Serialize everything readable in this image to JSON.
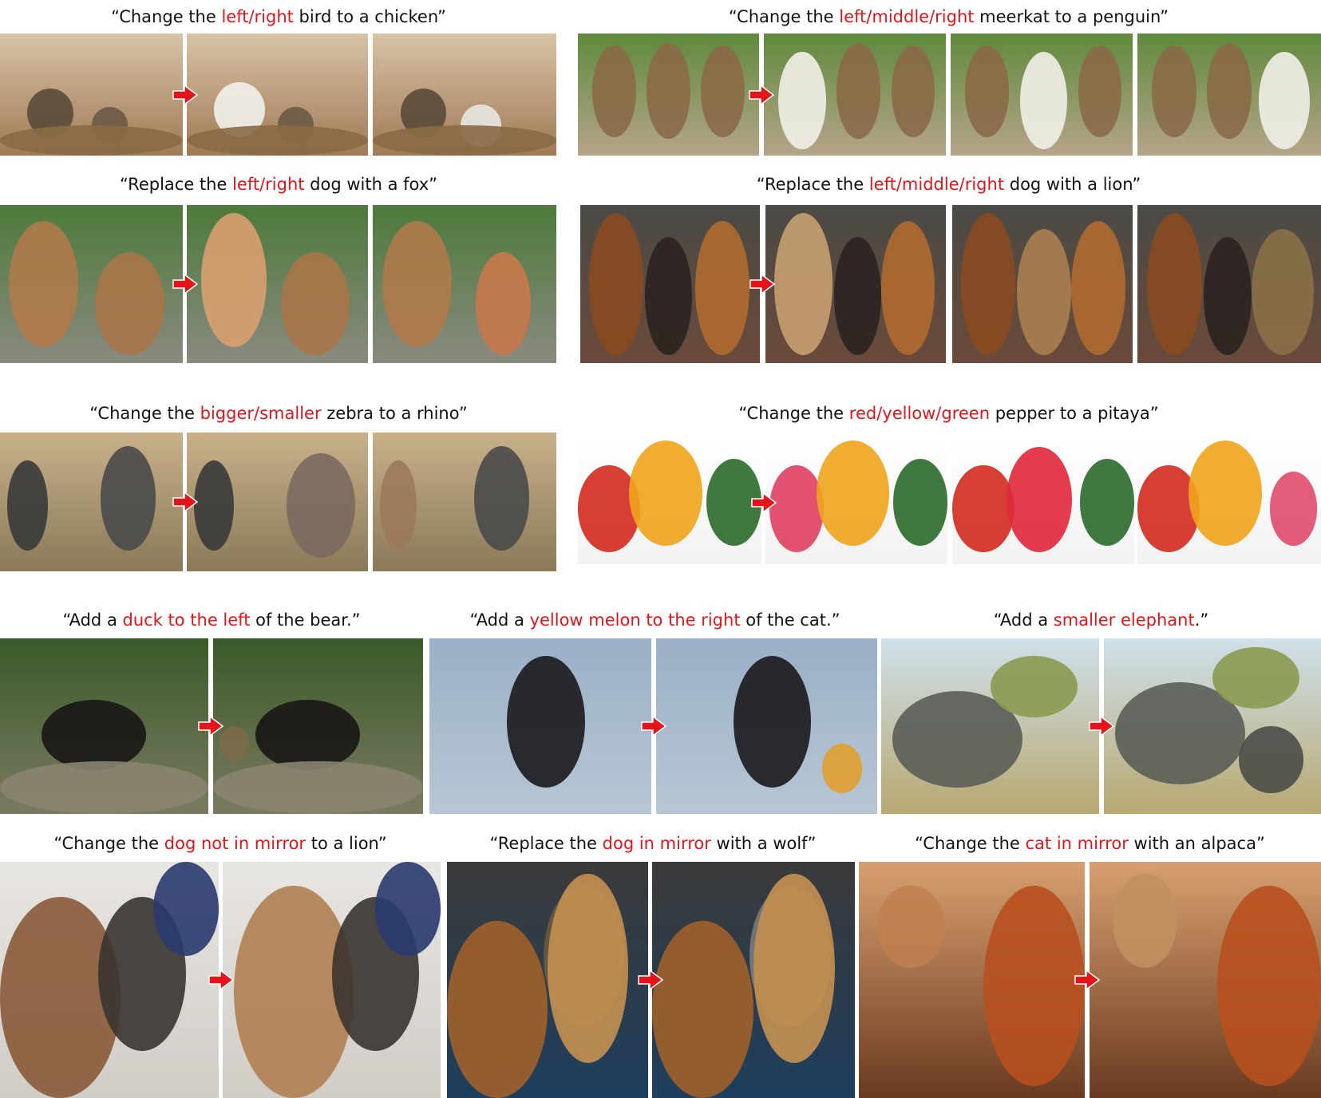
{
  "colors": {
    "highlight": "#e4141b",
    "text": "#111111",
    "arrow": "#e4141b"
  },
  "figure": {
    "rows": [
      {
        "groups": [
          {
            "caption": {
              "pre": "“Change the ",
              "hl": "left/right",
              "post": " bird to a chicken”"
            },
            "panels": [
              {
                "subject": "two-hornbills-input"
              },
              {
                "subject": "left-bird-to-chicken"
              },
              {
                "subject": "right-bird-to-chicken"
              }
            ]
          },
          {
            "caption": {
              "pre": "“Change the ",
              "hl": "left/middle/right",
              "post": " meerkat to a penguin”"
            },
            "panels": [
              {
                "subject": "three-meerkats-input"
              },
              {
                "subject": "left-meerkat-to-penguin"
              },
              {
                "subject": "middle-meerkat-to-penguin"
              },
              {
                "subject": "right-meerkat-to-penguin"
              }
            ]
          }
        ]
      },
      {
        "groups": [
          {
            "caption": {
              "pre": "“Replace the ",
              "hl": "left/right",
              "post": " dog with a fox”"
            },
            "panels": [
              {
                "subject": "two-puppies-input"
              },
              {
                "subject": "left-dog-to-fox"
              },
              {
                "subject": "right-dog-to-fox"
              }
            ]
          },
          {
            "caption": {
              "pre": "“Replace the ",
              "hl": "left/middle/right",
              "post": " dog with a lion”"
            },
            "panels": [
              {
                "subject": "three-dogs-input"
              },
              {
                "subject": "left-dog-to-lion"
              },
              {
                "subject": "middle-dog-to-lion"
              },
              {
                "subject": "right-dog-to-lion"
              }
            ]
          }
        ]
      },
      {
        "groups": [
          {
            "caption": {
              "pre": "“Change the ",
              "hl": "bigger/smaller",
              "post": " zebra to a rhino”"
            },
            "panels": [
              {
                "subject": "two-zebras-input"
              },
              {
                "subject": "bigger-zebra-to-rhino"
              },
              {
                "subject": "smaller-zebra-to-rhino"
              }
            ]
          },
          {
            "caption": {
              "pre": "“Change the ",
              "hl": "red/yellow/green",
              "post": " pepper to a pitaya”"
            },
            "panels": [
              {
                "subject": "three-peppers-input"
              },
              {
                "subject": "red-pepper-to-pitaya"
              },
              {
                "subject": "yellow-pepper-to-pitaya"
              },
              {
                "subject": "green-pepper-to-pitaya"
              }
            ]
          }
        ]
      },
      {
        "groups": [
          {
            "caption": {
              "pre": "“Add a ",
              "hl": "duck to the left",
              "post": " of the bear.”"
            },
            "panels": [
              {
                "subject": "bear-input"
              },
              {
                "subject": "bear-with-duck"
              }
            ]
          },
          {
            "caption": {
              "pre": "“Add a ",
              "hl": "yellow melon to the right",
              "post": " of the cat.”"
            },
            "panels": [
              {
                "subject": "cat-on-bed-input"
              },
              {
                "subject": "cat-with-melon"
              }
            ]
          },
          {
            "caption": {
              "pre": "“Add a ",
              "hl": "smaller elephant",
              "post": ".”"
            },
            "panels": [
              {
                "subject": "elephant-input"
              },
              {
                "subject": "elephant-with-calf"
              }
            ]
          }
        ]
      },
      {
        "groups": [
          {
            "caption": {
              "pre": "“Change the ",
              "hl": "dog not in mirror",
              "post": " to a lion”"
            },
            "panels": [
              {
                "subject": "dogs-mirror-input"
              },
              {
                "subject": "dog-to-lion-mirror"
              }
            ]
          },
          {
            "caption": {
              "pre": "“Replace the ",
              "hl": "dog in mirror",
              "post": " with a wolf”"
            },
            "panels": [
              {
                "subject": "dog-mirror-input"
              },
              {
                "subject": "mirror-dog-to-wolf"
              }
            ]
          },
          {
            "caption": {
              "pre": "“Change the ",
              "hl": "cat in mirror",
              "post": " with an alpaca”"
            },
            "panels": [
              {
                "subject": "cat-mirror-input"
              },
              {
                "subject": "mirror-cat-to-alpaca"
              }
            ]
          }
        ]
      }
    ]
  }
}
